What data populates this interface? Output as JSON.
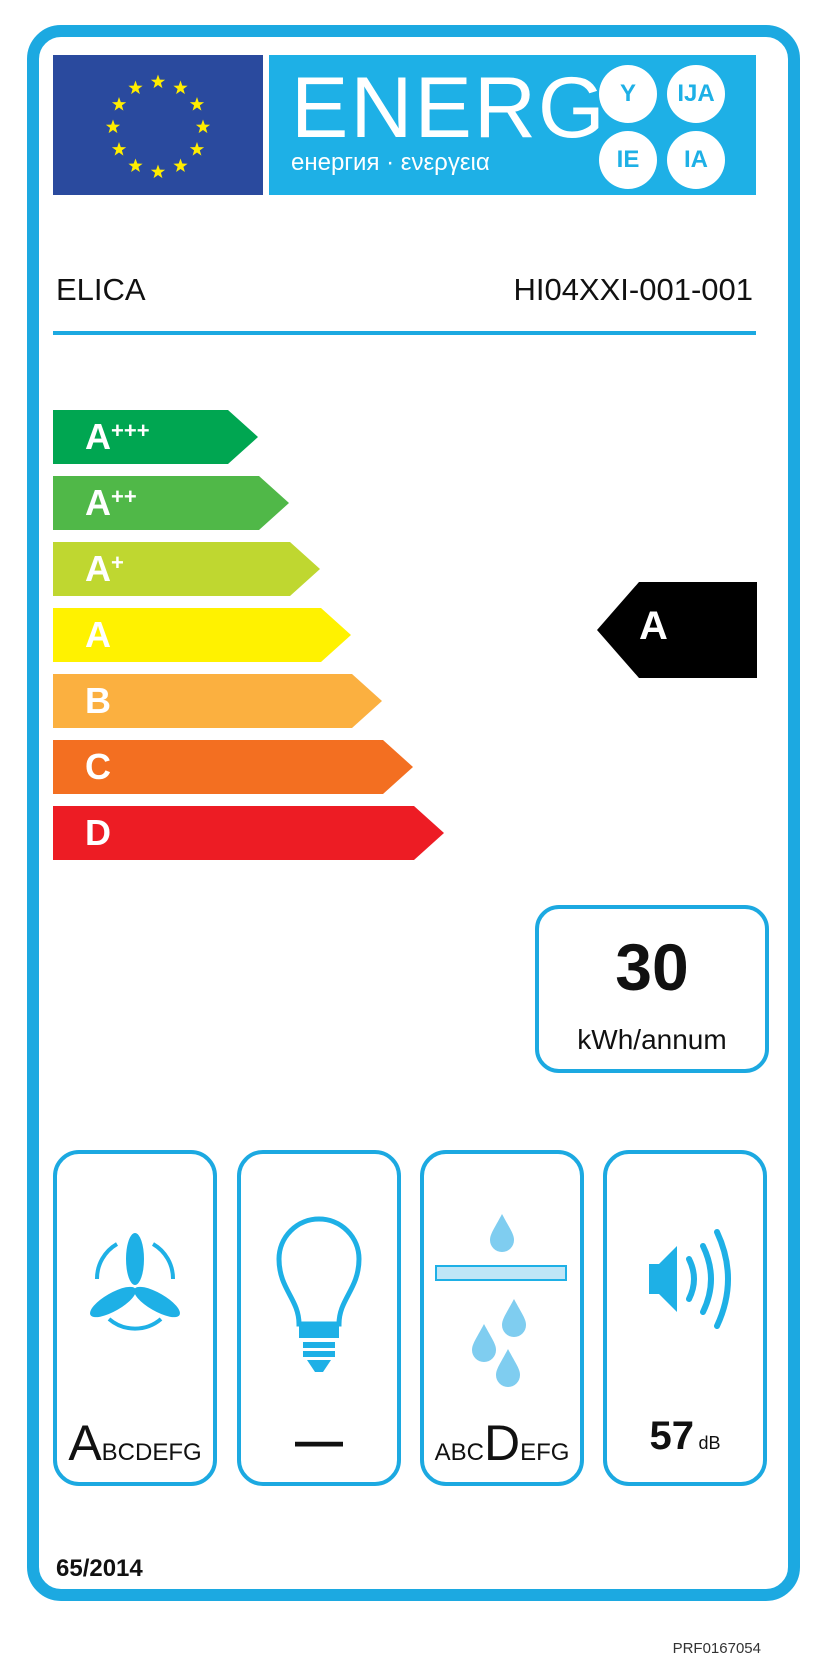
{
  "header": {
    "energy_word": "ENERG",
    "languages_line": "енергия · ενεργεια",
    "suffixes": [
      "Y",
      "IJA",
      "IE",
      "IA"
    ],
    "flag_icon": "eu-flag-icon"
  },
  "supplier": "ELICA",
  "model": "HI04XXI-001-001",
  "scale": [
    {
      "base": "A",
      "plus": "+++",
      "color": "#00a651"
    },
    {
      "base": "A",
      "plus": "++",
      "color": "#50b848"
    },
    {
      "base": "A",
      "plus": "+",
      "color": "#bfd730"
    },
    {
      "base": "A",
      "plus": "",
      "color": "#fff200"
    },
    {
      "base": "B",
      "plus": "",
      "color": "#fbb040"
    },
    {
      "base": "C",
      "plus": "",
      "color": "#f36f21"
    },
    {
      "base": "D",
      "plus": "",
      "color": "#ed1c24"
    }
  ],
  "rating": "A",
  "energy": {
    "value": "30",
    "unit": "kWh/annum"
  },
  "pictograms": [
    {
      "icon": "fan-icon",
      "class_before": "",
      "class_selected": "A",
      "class_after": "BCDEFG"
    },
    {
      "icon": "light-bulb-icon",
      "value": "—"
    },
    {
      "icon": "grease-filter-icon",
      "class_before": "ABC",
      "class_selected": "D",
      "class_after": "EFG"
    },
    {
      "icon": "speaker-noise-icon",
      "value": "57",
      "unit": "dB"
    }
  ],
  "regulation": "65/2014",
  "code": "PRF0167054",
  "colors": {
    "frame": "#1ca9e1",
    "band": "#1eb0e6",
    "flag": "#2a4a9e",
    "star": "#ffed00"
  }
}
